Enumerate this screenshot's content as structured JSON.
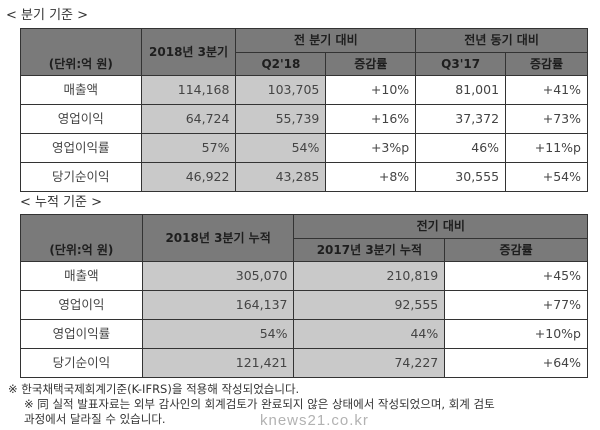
{
  "quarterly": {
    "caption": "< 분기 기준 >",
    "unit": "(단위:억 원)",
    "col_current": "2018년 3분기",
    "group_qoq": "전 분기 대비",
    "group_yoy": "전년 동기 대비",
    "sub": [
      "Q2'18",
      "증감률",
      "Q3'17",
      "증감률"
    ],
    "rows": [
      {
        "label": "매출액",
        "cur": "114,168",
        "q2": "103,705",
        "qoq": "+10%",
        "q3": "81,001",
        "yoy": "+41%"
      },
      {
        "label": "영업이익",
        "cur": "64,724",
        "q2": "55,739",
        "qoq": "+16%",
        "q3": "37,372",
        "yoy": "+73%"
      },
      {
        "label": "영업이익률",
        "cur": "57%",
        "q2": "54%",
        "qoq": "+3%p",
        "q3": "46%",
        "yoy": "+11%p"
      },
      {
        "label": "당기순이익",
        "cur": "46,922",
        "q2": "43,285",
        "qoq": "+8%",
        "q3": "30,555",
        "yoy": "+54%"
      }
    ]
  },
  "cumulative": {
    "caption": "< 누적 기준 >",
    "unit": "(단위:억 원)",
    "col_current": "2018년 3분기 누적",
    "group": "전기 대비",
    "sub": [
      "2017년 3분기 누적",
      "증감률"
    ],
    "rows": [
      {
        "label": "매출액",
        "cur": "305,070",
        "prev": "210,819",
        "chg": "+45%"
      },
      {
        "label": "영업이익",
        "cur": "164,137",
        "prev": "92,555",
        "chg": "+77%"
      },
      {
        "label": "영업이익률",
        "cur": "54%",
        "prev": "44%",
        "chg": "+10%p"
      },
      {
        "label": "당기순이익",
        "cur": "121,421",
        "prev": "74,227",
        "chg": "+64%"
      }
    ]
  },
  "notes": [
    "※ 한국채택국제회계기준(K-IFRS)을 적용해 작성되었습니다.",
    "※ 同 실적 발표자료는 외부 감사인의 회계검토가 완료되지 않은 상태에서 작성되었으며, 회계 검토",
    "과정에서 달라질 수 있습니다."
  ],
  "watermark": "knews21.co.kr"
}
